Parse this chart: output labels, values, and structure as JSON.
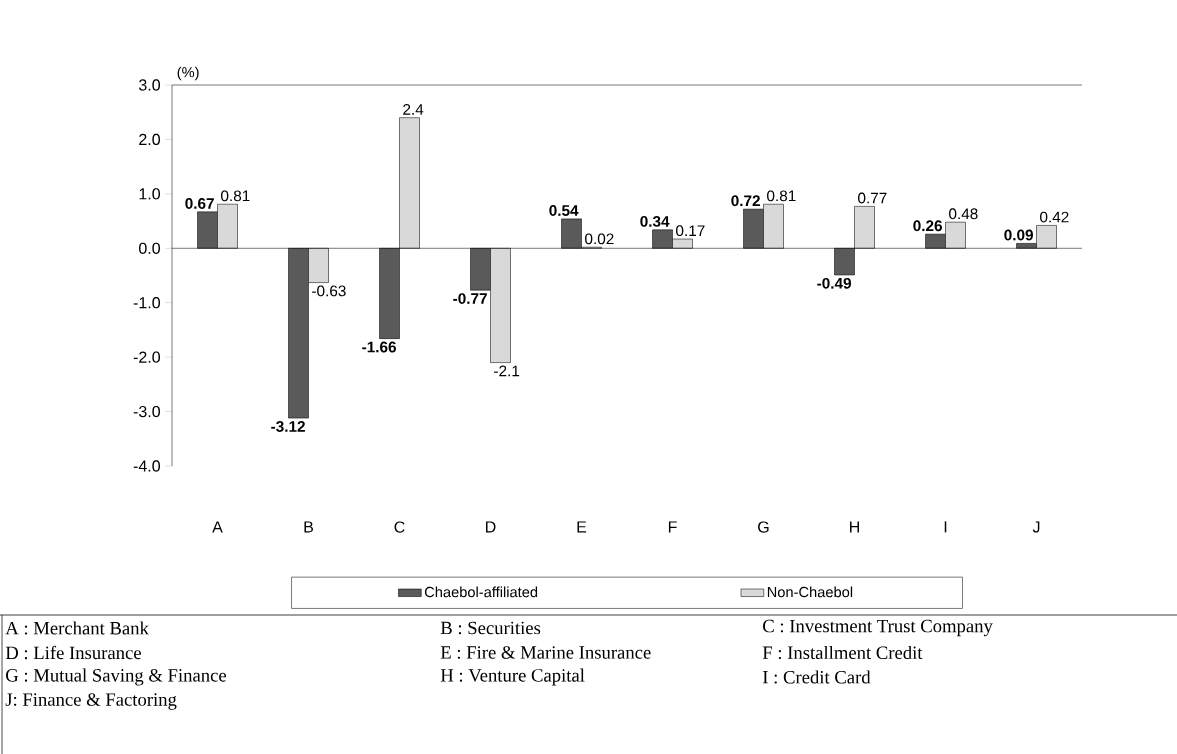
{
  "chart_data": {
    "type": "bar",
    "ylabel": "(%)",
    "categories": [
      "A",
      "B",
      "C",
      "D",
      "E",
      "F",
      "G",
      "H",
      "I",
      "J"
    ],
    "series": [
      {
        "name": "Chaebol-affiliated",
        "color": "#5a5a5a",
        "values": [
          0.67,
          -3.12,
          -1.66,
          -0.77,
          0.54,
          0.34,
          0.72,
          -0.49,
          0.26,
          0.09
        ]
      },
      {
        "name": "Non-Chaebol",
        "color": "#d9d9d9",
        "values": [
          0.81,
          -0.63,
          2.4,
          -2.1,
          0.02,
          0.17,
          0.81,
          0.77,
          0.48,
          0.42
        ]
      }
    ],
    "ylim": [
      -4,
      3
    ],
    "yticks": [
      {
        "value": -4,
        "label": "-4.0"
      },
      {
        "value": -3,
        "label": "-3.0"
      },
      {
        "value": -2,
        "label": "-2.0"
      },
      {
        "value": -1,
        "label": "-1.0"
      },
      {
        "value": 0,
        "label": "0.0"
      },
      {
        "value": 1,
        "label": "1.0"
      },
      {
        "value": 2,
        "label": "2.0"
      },
      {
        "value": 3,
        "label": "3.0"
      }
    ],
    "data_labels": true,
    "legend": "bottom",
    "annotations": [
      "A : Merchant Bank",
      "B : Securities",
      "C : Investment Trust Company",
      "D : Life Insurance",
      "E : Fire & Marine Insurance",
      "F : Installment Credit",
      "G : Mutual Saving & Finance",
      "H : Venture Capital",
      "I : Credit Card",
      "J: Finance & Factoring"
    ]
  }
}
